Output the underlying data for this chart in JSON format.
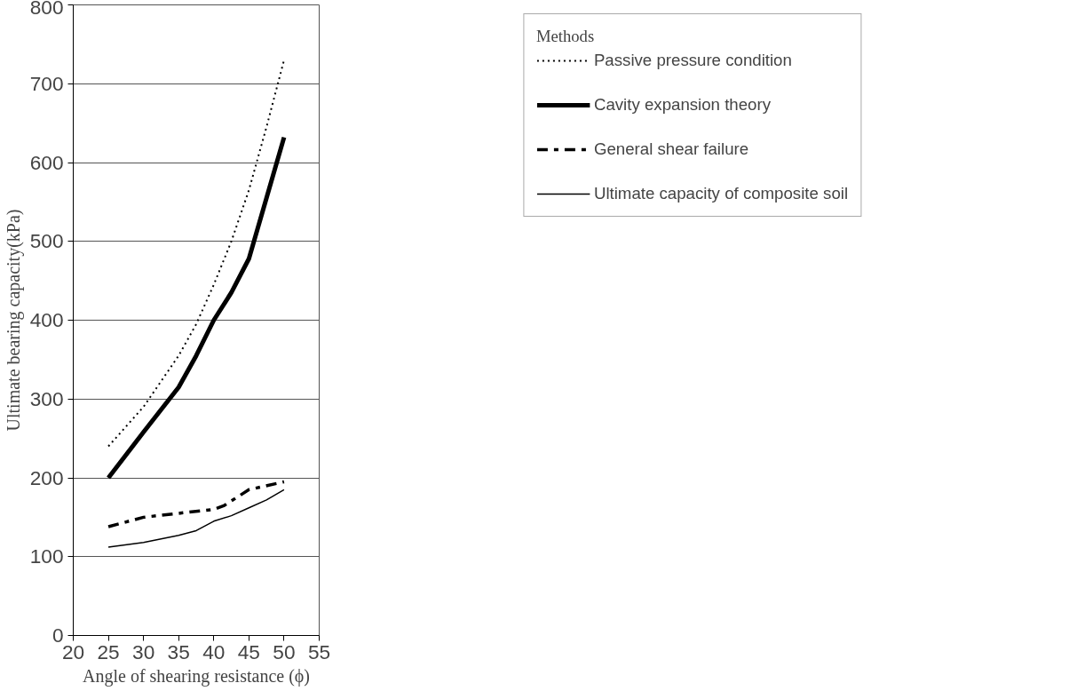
{
  "chart_data": {
    "type": "line",
    "xlabel": "Angle of shearing resistance (ϕ)",
    "ylabel": "Ultimate bearing capacity(kPa)",
    "legend_title": "Methods",
    "legend": "right",
    "grid": "y",
    "marker": "none",
    "xlim": [
      20,
      55
    ],
    "xticks": [
      20,
      25,
      30,
      35,
      40,
      45,
      50,
      55
    ],
    "ylim": [
      0,
      800
    ],
    "yticks": [
      0,
      100,
      200,
      300,
      400,
      500,
      600,
      700,
      800
    ],
    "series": [
      {
        "name": "Passive pressure condition",
        "color": "#000000",
        "line_style": "dotted",
        "x": [
          25,
          30,
          35,
          37.5,
          40,
          42.5,
          45,
          47.5,
          50
        ],
        "values": [
          240,
          290,
          355,
          395,
          445,
          500,
          565,
          645,
          730
        ]
      },
      {
        "name": "Cavity expansion theory",
        "color": "#000000",
        "line_style": "solid",
        "x": [
          25,
          30,
          35,
          37.5,
          40,
          42.5,
          45,
          47.5,
          50
        ],
        "values": [
          200,
          258,
          315,
          355,
          400,
          435,
          478,
          555,
          632
        ]
      },
      {
        "name": "General shear failure",
        "color": "#000000",
        "line_style": "dashdot",
        "x": [
          25,
          30,
          35,
          40,
          41.5,
          45,
          50
        ],
        "values": [
          138,
          150,
          155,
          160,
          165,
          185,
          195
        ]
      },
      {
        "name": "Ultimate capacity of composite soil",
        "color": "#000000",
        "line_style": "solid",
        "x": [
          25,
          30,
          35,
          37.5,
          40,
          42.5,
          45,
          47.5,
          50
        ],
        "values": [
          112,
          118,
          127,
          133,
          145,
          152,
          162,
          172,
          185
        ]
      }
    ]
  }
}
